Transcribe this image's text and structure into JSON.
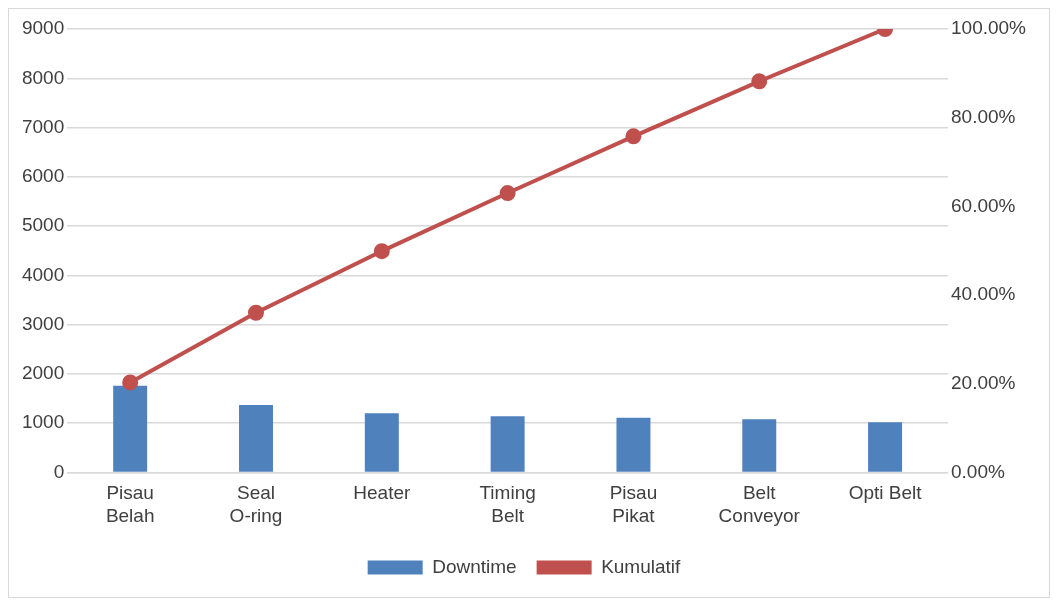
{
  "chart_data": {
    "type": "bar",
    "categories": [
      "Pisau Belah",
      "Seal O-ring",
      "Heater",
      "Timing Belt",
      "Pisau Pikat",
      "Belt Conveyor",
      "Opti Belt"
    ],
    "series": [
      {
        "name": "Downtime",
        "color": "#4f81bd",
        "values": [
          1760,
          1370,
          1200,
          1140,
          1110,
          1080,
          1020
        ]
      },
      {
        "name": "Kumulatif",
        "type": "line",
        "axis": "y2",
        "color": "#c0504d",
        "values": [
          20.3,
          36.0,
          49.9,
          63.0,
          75.8,
          88.2,
          100
        ]
      }
    ],
    "ylim": [
      0,
      9000
    ],
    "yticks": [
      0,
      1000,
      2000,
      3000,
      4000,
      5000,
      6000,
      7000,
      8000,
      9000
    ],
    "y2lim": [
      0,
      100
    ],
    "y2ticks": [
      {
        "value": 0,
        "label": "0.00%"
      },
      {
        "value": 20,
        "label": "20.00%"
      },
      {
        "value": 40,
        "label": "40.00%"
      },
      {
        "value": 60,
        "label": "60.00%"
      },
      {
        "value": 80,
        "label": "80.00%"
      },
      {
        "value": 100,
        "label": "100.00%"
      }
    ],
    "grid": "y",
    "legend": "bottom",
    "marker": "circle"
  }
}
